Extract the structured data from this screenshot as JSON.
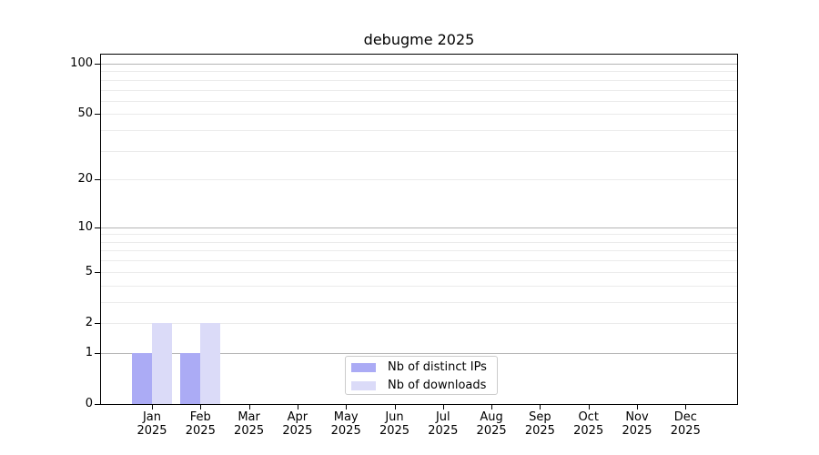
{
  "chart_data": {
    "type": "bar",
    "title": "debugme 2025",
    "categories": [
      "Jan",
      "Feb",
      "Mar",
      "Apr",
      "May",
      "Jun",
      "Jul",
      "Aug",
      "Sep",
      "Oct",
      "Nov",
      "Dec"
    ],
    "category_year": "2025",
    "series": [
      {
        "name": "Nb of distinct IPs",
        "color": "#ababf5",
        "values": [
          1,
          1,
          0,
          0,
          0,
          0,
          0,
          0,
          0,
          0,
          0,
          0
        ]
      },
      {
        "name": "Nb of downloads",
        "color": "#dbdbf8",
        "values": [
          2,
          2,
          0,
          0,
          0,
          0,
          0,
          0,
          0,
          0,
          0,
          0
        ]
      }
    ],
    "yscale": "log1p",
    "ylim": [
      0,
      113
    ],
    "yticks": [
      0,
      1,
      2,
      5,
      10,
      20,
      50,
      100
    ],
    "grid": {
      "major": [
        1,
        10,
        100
      ],
      "minor": [
        2,
        3,
        4,
        5,
        6,
        7,
        8,
        9,
        20,
        30,
        40,
        50,
        60,
        70,
        80,
        90
      ],
      "major_color": "#b5b5b5",
      "minor_color": "#ebebeb"
    },
    "legend_position": "bottom-center",
    "axis_color": "#000000",
    "background_color": "#ffffff"
  }
}
